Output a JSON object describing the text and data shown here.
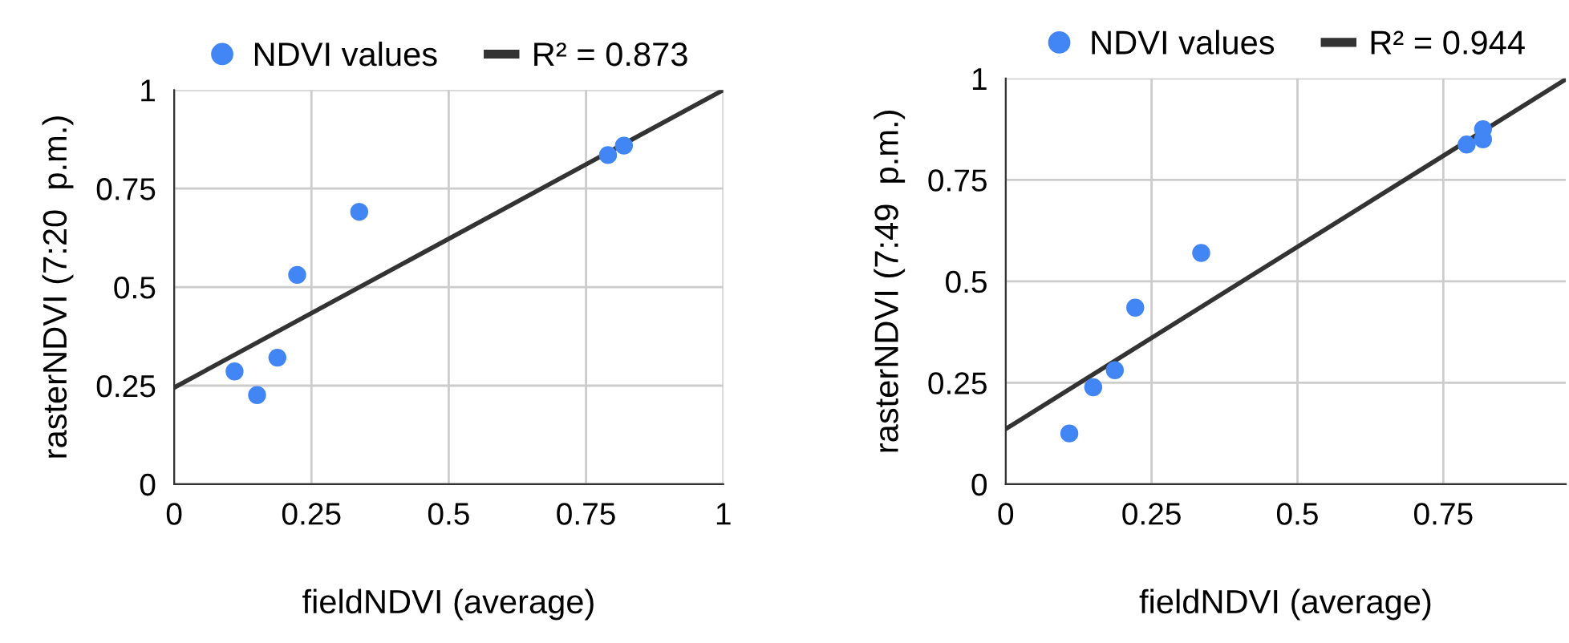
{
  "chart_data": [
    {
      "type": "scatter",
      "xlabel": "fieldNDVI (average)",
      "ylabel": "rasterNDVI (7:20  p.m.)",
      "xlim": [
        0,
        1
      ],
      "ylim": [
        0,
        1
      ],
      "xticks": [
        0,
        0.25,
        0.5,
        0.75,
        1
      ],
      "yticks": [
        0,
        0.25,
        0.5,
        0.75,
        1
      ],
      "grid": true,
      "legend": "top",
      "series": [
        {
          "name": "NDVI values",
          "marker": "circle",
          "color": "#4285f4",
          "x": [
            0.11,
            0.151,
            0.188,
            0.224,
            0.337,
            0.79,
            0.819
          ],
          "values": [
            0.286,
            0.226,
            0.321,
            0.531,
            0.691,
            0.835,
            0.859
          ]
        },
        {
          "name": "R² = 0.873",
          "type": "line",
          "color": "#333333",
          "x": [
            0,
            1
          ],
          "values": [
            0.245,
            1.0
          ]
        }
      ]
    },
    {
      "type": "scatter",
      "xlabel": "fieldNDVI (average)",
      "ylabel": "rasterNDVI (7:49  p.m.)",
      "xlim": [
        0,
        0.96
      ],
      "ylim": [
        0,
        1
      ],
      "xticks": [
        0,
        0.25,
        0.5,
        0.75
      ],
      "yticks": [
        0,
        0.25,
        0.5,
        0.75,
        1
      ],
      "grid": true,
      "legend": "top",
      "series": [
        {
          "name": "NDVI values",
          "marker": "circle",
          "color": "#4285f4",
          "x": [
            0.109,
            0.15,
            0.187,
            0.222,
            0.335,
            0.79,
            0.818,
            0.818
          ],
          "values": [
            0.125,
            0.239,
            0.281,
            0.435,
            0.57,
            0.837,
            0.875,
            0.85
          ]
        },
        {
          "name": "R² = 0.944",
          "type": "line",
          "color": "#333333",
          "x": [
            0,
            0.96
          ],
          "values": [
            0.136,
            0.998
          ]
        }
      ]
    }
  ]
}
